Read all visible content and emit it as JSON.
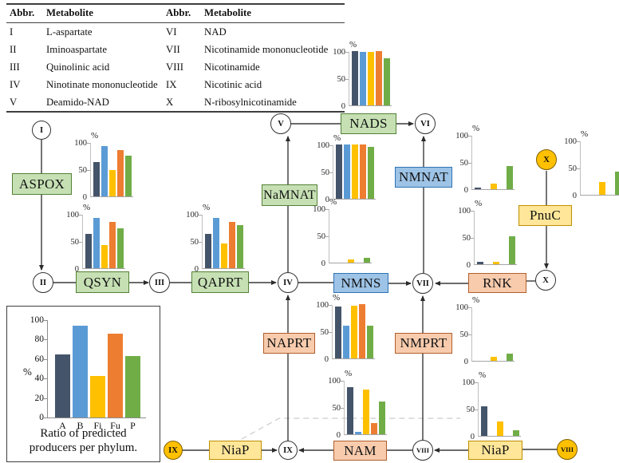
{
  "table": {
    "headers": [
      "Abbr.",
      "Metabolite",
      "Abbr.",
      "Metabolite"
    ],
    "rows": [
      [
        "I",
        "L-aspartate",
        "VI",
        "NAD"
      ],
      [
        "II",
        "Iminoaspartate",
        "VII",
        "Nicotinamide mononucleotide"
      ],
      [
        "III",
        "Quinolinic acid",
        "VIII",
        "Nicotinamide"
      ],
      [
        "IV",
        "Ninotinate mononucleotide",
        "IX",
        "Nicotinic acid"
      ],
      [
        "V",
        "Deamido-NAD",
        "X",
        "N-ribosylnicotinamide"
      ]
    ]
  },
  "enzymes": [
    {
      "id": "ASPOX",
      "label": "ASPOX",
      "color": "green"
    },
    {
      "id": "QSYN",
      "label": "QSYN",
      "color": "green"
    },
    {
      "id": "QAPRT",
      "label": "QAPRT",
      "color": "green"
    },
    {
      "id": "NaMNAT",
      "label": "NaMNAT",
      "color": "green"
    },
    {
      "id": "NADS",
      "label": "NADS",
      "color": "green"
    },
    {
      "id": "NMNAT",
      "label": "NMNAT",
      "color": "blue"
    },
    {
      "id": "NMNS",
      "label": "NMNS",
      "color": "blue"
    },
    {
      "id": "RNK",
      "label": "RNK",
      "color": "salmon"
    },
    {
      "id": "PnuC",
      "label": "PnuC",
      "color": "yellow"
    },
    {
      "id": "NAPRT",
      "label": "NAPRT",
      "color": "salmon"
    },
    {
      "id": "NMPRT",
      "label": "NMPRT",
      "color": "salmon"
    },
    {
      "id": "NAM",
      "label": "NAM",
      "color": "salmon"
    },
    {
      "id": "NiaP_L",
      "label": "NiaP",
      "color": "yellow"
    },
    {
      "id": "NiaP_R",
      "label": "NiaP",
      "color": "yellow"
    }
  ],
  "metabolites": [
    {
      "id": "I",
      "label": "I",
      "filled": false
    },
    {
      "id": "II",
      "label": "II",
      "filled": false
    },
    {
      "id": "III",
      "label": "III",
      "filled": false
    },
    {
      "id": "IV",
      "label": "IV",
      "filled": false
    },
    {
      "id": "V",
      "label": "V",
      "filled": false
    },
    {
      "id": "VI",
      "label": "VI",
      "filled": false
    },
    {
      "id": "VII",
      "label": "VII",
      "filled": false
    },
    {
      "id": "X_o",
      "label": "X",
      "filled": true
    },
    {
      "id": "X_w",
      "label": "X",
      "filled": false
    },
    {
      "id": "IX_o",
      "label": "IX",
      "filled": true
    },
    {
      "id": "IX_w",
      "label": "IX",
      "filled": false
    },
    {
      "id": "VIII_w",
      "label": "VIII",
      "filled": false
    },
    {
      "id": "VIII_o",
      "label": "VIII",
      "filled": true
    }
  ],
  "chart_data": {
    "type": "bar",
    "unit": "%",
    "ylim": [
      0,
      100
    ],
    "axis_ticks": [
      "100",
      "50",
      "0"
    ],
    "categories": [
      "A",
      "B",
      "Fi",
      "Fu",
      "P"
    ],
    "series_colors": [
      "#44546a",
      "#5b9bd5",
      "#ffc000",
      "#ed7d31",
      "#70ad47"
    ],
    "charts": [
      {
        "enzyme": "ASPOX",
        "values": [
          63,
          93,
          48,
          85,
          75
        ]
      },
      {
        "enzyme": "QSYN",
        "values": [
          63,
          93,
          43,
          85,
          73
        ]
      },
      {
        "enzyme": "QAPRT",
        "values": [
          63,
          92,
          45,
          85,
          80
        ]
      },
      {
        "enzyme": "NaMNAT",
        "values": [
          100,
          100,
          100,
          100,
          95
        ]
      },
      {
        "enzyme": "NADS",
        "values": [
          100,
          99,
          98,
          100,
          87
        ]
      },
      {
        "enzyme": "NMNS",
        "values": [
          0,
          0,
          6,
          0,
          9
        ]
      },
      {
        "enzyme": "NMNAT",
        "values": [
          3,
          0,
          10,
          0,
          43
        ]
      },
      {
        "enzyme": "RNK",
        "values": [
          5,
          0,
          4,
          0,
          51
        ]
      },
      {
        "enzyme": "PnuC",
        "values": [
          0,
          0,
          23,
          0,
          42
        ]
      },
      {
        "enzyme": "NAPRT",
        "values": [
          95,
          60,
          97,
          100,
          60
        ]
      },
      {
        "enzyme": "NMPRT",
        "values": [
          0,
          0,
          7,
          0,
          13
        ]
      },
      {
        "enzyme": "NAM",
        "values": [
          87,
          5,
          83,
          20,
          60
        ]
      },
      {
        "enzyme": "NiaP_R",
        "values": [
          55,
          0,
          27,
          0,
          10
        ]
      }
    ],
    "legend_chart": {
      "title": "Ratio of predicted producers per phylum.",
      "ylabel": "%",
      "yticks": [
        0,
        20,
        40,
        60,
        80,
        100
      ],
      "categories": [
        "A",
        "B",
        "Fi",
        "Fu",
        "P"
      ],
      "values": [
        65,
        94,
        43,
        86,
        63
      ]
    }
  },
  "legend": {
    "ylabel": "%",
    "caption_line1": "Ratio of predicted",
    "caption_line2": "producers per phylum."
  },
  "colors": {
    "phylum_A": "#44546a",
    "phylum_B": "#5b9bd5",
    "phylum_Fi": "#ffc000",
    "phylum_Fu": "#ed7d31",
    "phylum_P": "#70ad47",
    "box_green": "#c6e0b4",
    "box_blue": "#9dc3e6",
    "box_salmon": "#f8cbad",
    "box_yellow": "#ffe699",
    "metabolite_highlight": "#ffc000"
  }
}
